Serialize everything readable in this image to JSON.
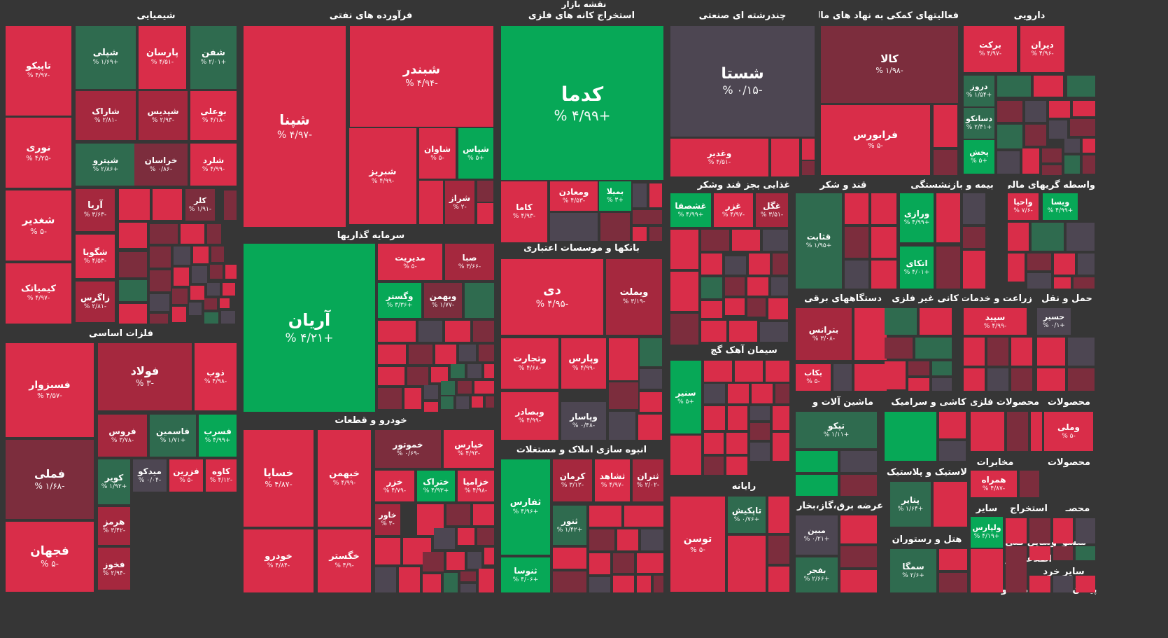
{
  "chart_data": {
    "type": "treemap",
    "title": "نقشه بازار",
    "colors": {
      "background": "#363636",
      "strong_negative": "#d92d49",
      "negative": "#a5283e",
      "mild_negative": "#7c2d3d",
      "neutral": "#4d4652",
      "positive": "#2f6b4f",
      "strong_positive": "#07a857"
    },
    "sectors": [
      {
        "name": "شیمیایی",
        "tiles": [
          {
            "name": "تاپیکو",
            "change": "-۴/۹۷ %",
            "value": -4.97
          },
          {
            "name": "شپلی",
            "change": "+۱/۶۹ %",
            "value": 1.69
          },
          {
            "name": "پارسان",
            "change": "-۴/۵۱ %",
            "value": -4.51
          },
          {
            "name": "شفن",
            "change": "+۲/۰۱ %",
            "value": 2.01
          },
          {
            "name": "نوری",
            "change": "-۴/۲۵ %",
            "value": -4.25
          },
          {
            "name": "شاراک",
            "change": "-۲/۸۱ %",
            "value": -2.81
          },
          {
            "name": "شپدیس",
            "change": "-۲/۹۳ %",
            "value": -2.93
          },
          {
            "name": "بوعلی",
            "change": "-۴/۱۸ %",
            "value": -4.18
          },
          {
            "name": "شپترو",
            "change": "+۲/۸۶ %",
            "value": 2.86
          },
          {
            "name": "خراسان",
            "change": "-۰/۸۶ %",
            "value": -0.86
          },
          {
            "name": "شلرد",
            "change": "-۴/۹۹ %",
            "value": -4.99
          },
          {
            "name": "شغدیر",
            "change": "-۵ %",
            "value": -5
          },
          {
            "name": "آریا",
            "change": "-۳/۶۳ %",
            "value": -3.63
          },
          {
            "name": "کلر",
            "change": "-۱/۹۱ %",
            "value": -1.91
          },
          {
            "name": "شگویا",
            "change": "-۴/۵۳ %",
            "value": -4.53
          },
          {
            "name": "کیمیاتک",
            "change": "-۴/۹۷ %",
            "value": -4.97
          },
          {
            "name": "زاگرس",
            "change": "-۲/۸۱ %",
            "value": -2.81
          }
        ]
      },
      {
        "name": "فرآورده های نفتی",
        "tiles": [
          {
            "name": "شبندر",
            "change": "-۴/۹۴ %",
            "value": -4.94
          },
          {
            "name": "شپنا",
            "change": "-۴/۹۷ %",
            "value": -4.97
          },
          {
            "name": "شاوان",
            "change": "-۵ %",
            "value": -5
          },
          {
            "name": "شپاس",
            "change": "+۵ %",
            "value": 5
          },
          {
            "name": "شبریز",
            "change": "-۴/۹۹ %",
            "value": -4.99
          },
          {
            "name": "شراز",
            "change": "-۲ %",
            "value": -2
          }
        ]
      },
      {
        "name": "استخراج کانه های فلزی",
        "tiles": [
          {
            "name": "کدما",
            "change": "+۴/۹۹ %",
            "value": 4.99
          },
          {
            "name": "ومعادن",
            "change": "-۴/۵۳ %",
            "value": -4.53
          },
          {
            "name": "بمیلا",
            "change": "+۳ %",
            "value": 3
          },
          {
            "name": "کاما",
            "change": "-۴/۹۳ %",
            "value": -4.93
          }
        ]
      },
      {
        "name": "چندرشته ای صنعتی",
        "tiles": [
          {
            "name": "شستا",
            "change": "-۰/۱۵ %",
            "value": -0.15
          },
          {
            "name": "وغدیر",
            "change": "-۴/۵۱ %",
            "value": -4.51
          }
        ]
      },
      {
        "name": "فعالیتهای کمکی به نهاد های مالی",
        "tiles": [
          {
            "name": "کالا",
            "change": "-۱/۹۸ %",
            "value": -1.98
          },
          {
            "name": "فرابورس",
            "change": "-۵ %",
            "value": -5
          }
        ]
      },
      {
        "name": "دارویی",
        "tiles": [
          {
            "name": "برکت",
            "change": "-۴/۹۷ %",
            "value": -4.97
          },
          {
            "name": "دیران",
            "change": "-۴/۹۶ %",
            "value": -4.96
          },
          {
            "name": "دروز",
            "change": "+۱/۵۴ %",
            "value": 1.54
          },
          {
            "name": "دسانکو",
            "change": "+۲/۴۱ %",
            "value": 2.41
          },
          {
            "name": "پخش",
            "change": "+۵ %",
            "value": 5
          }
        ]
      },
      {
        "name": "سرمایه گذاریها",
        "tiles": [
          {
            "name": "آریان",
            "change": "+۴/۲۱ %",
            "value": 4.21
          },
          {
            "name": "مدیریت",
            "change": "-۵ %",
            "value": -5
          },
          {
            "name": "صبا",
            "change": "-۳/۶۶ %",
            "value": -3.66
          },
          {
            "name": "وگستر",
            "change": "+۳/۳۶ %",
            "value": 3.36
          },
          {
            "name": "وبهمن",
            "change": "-۱/۷۷ %",
            "value": -1.77
          }
        ]
      },
      {
        "name": "بانکها و موسسات اعتباری",
        "tiles": [
          {
            "name": "دی",
            "change": "-۴/۹۵ %",
            "value": -4.95
          },
          {
            "name": "وبملت",
            "change": "-۳/۱۹ %",
            "value": -3.19
          },
          {
            "name": "وتجارت",
            "change": "-۴/۶۸ %",
            "value": -4.68
          },
          {
            "name": "وپارس",
            "change": "-۴/۹۹ %",
            "value": -4.99
          },
          {
            "name": "وبصادر",
            "change": "-۴/۹۹ %",
            "value": -4.99
          },
          {
            "name": "وپاسار",
            "change": "-۰/۴۸ %",
            "value": -0.48
          }
        ]
      },
      {
        "name": "غذایی بجز قند وشکر",
        "tiles": [
          {
            "name": "غشصفا",
            "change": "+۴/۹۹ %",
            "value": 4.99
          },
          {
            "name": "غزر",
            "change": "-۴/۹۷ %",
            "value": -4.97
          },
          {
            "name": "غگل",
            "change": "-۳/۵۱ %",
            "value": -3.51
          }
        ]
      },
      {
        "name": "قند و شکر",
        "tiles": [
          {
            "name": "قثابت",
            "change": "+۱/۹۵ %",
            "value": 1.95
          }
        ]
      },
      {
        "name": "بیمه و بازنشستگی",
        "tiles": [
          {
            "name": "ورازی",
            "change": "+۴/۹۹ %",
            "value": 4.99
          },
          {
            "name": "اتکای",
            "change": "+۴/۰۱ %",
            "value": 4.01
          }
        ]
      },
      {
        "name": "واسطه گریهای مالی و",
        "tiles": [
          {
            "name": "واحیا",
            "change": "-۷/۶ %",
            "value": -7.6
          },
          {
            "name": "ویسا",
            "change": "+۴/۹۹ %",
            "value": 4.99
          }
        ]
      },
      {
        "name": "فلزات اساسی",
        "tiles": [
          {
            "name": "فسبزوار",
            "change": "-۴/۵۷ %",
            "value": -4.57
          },
          {
            "name": "فولاد",
            "change": "-۳ %",
            "value": -3
          },
          {
            "name": "ذوب",
            "change": "-۴/۹۸ %",
            "value": -4.98
          },
          {
            "name": "فروس",
            "change": "-۳/۷۸ %",
            "value": -3.78
          },
          {
            "name": "فاسمین",
            "change": "+۱/۷۱ %",
            "value": 1.71
          },
          {
            "name": "فسرب",
            "change": "+۴/۹۹ %",
            "value": 4.99
          },
          {
            "name": "فملی",
            "change": "-۱/۶۸ %",
            "value": -1.68
          },
          {
            "name": "کویر",
            "change": "+۱/۹۲ %",
            "value": 1.92
          },
          {
            "name": "میدکو",
            "change": "-۰/۰۴ %",
            "value": -0.04
          },
          {
            "name": "فزرین",
            "change": "-۵ %",
            "value": -5
          },
          {
            "name": "کاوه",
            "change": "-۴/۱۲ %",
            "value": -4.12
          },
          {
            "name": "هرمز",
            "change": "-۳/۴۲ %",
            "value": -3.42
          },
          {
            "name": "فجهان",
            "change": "-۵ %",
            "value": -5
          },
          {
            "name": "فخوز",
            "change": "-۲/۹۴ %",
            "value": -2.94
          }
        ]
      },
      {
        "name": "خودرو و قطعات",
        "tiles": [
          {
            "name": "خساپا",
            "change": "-۴/۸۷ %",
            "value": -4.87
          },
          {
            "name": "خبهمن",
            "change": "-۴/۹۹ %",
            "value": -4.99
          },
          {
            "name": "خموتور",
            "change": "-۰/۶۹ %",
            "value": -0.69
          },
          {
            "name": "خپارس",
            "change": "-۴/۹۳ %",
            "value": -4.93
          },
          {
            "name": "خزر",
            "change": "-۴/۷۹ %",
            "value": -4.79
          },
          {
            "name": "ختراک",
            "change": "+۴/۹۳ %",
            "value": 4.93
          },
          {
            "name": "خزامیا",
            "change": "-۴/۹۸ %",
            "value": -4.98
          },
          {
            "name": "خاور",
            "change": "-۳ %",
            "value": -3
          },
          {
            "name": "خودرو",
            "change": "-۴/۸۴ %",
            "value": -4.84
          },
          {
            "name": "خگستر",
            "change": "-۴/۹ %",
            "value": -4.9
          }
        ]
      },
      {
        "name": "انبوه سازی املاک و مستغلات",
        "tiles": [
          {
            "name": "کرمان",
            "change": "-۳/۱۲ %",
            "value": -3.12
          },
          {
            "name": "ثشاهد",
            "change": "-۴/۹۷ %",
            "value": -4.97
          },
          {
            "name": "ثتران",
            "change": "-۲/۰۲ %",
            "value": -2.02
          },
          {
            "name": "ثفارس",
            "change": "+۴/۹۶ %",
            "value": 4.96
          },
          {
            "name": "ثنور",
            "change": "+۱/۴۲ %",
            "value": 1.42
          },
          {
            "name": "ثنوسا",
            "change": "+۴/۰۶ %",
            "value": 4.06
          }
        ]
      },
      {
        "name": "سیمان آهک گچ",
        "tiles": [
          {
            "name": "سنیر",
            "change": "+۵ %",
            "value": 5
          }
        ]
      },
      {
        "name": "رایانه",
        "tiles": [
          {
            "name": "توسن",
            "change": "-۵ %",
            "value": -5
          },
          {
            "name": "تاپکیش",
            "change": "+۰/۷۶ %",
            "value": 0.76
          }
        ]
      },
      {
        "name": "دستگاههای برقی",
        "tiles": [
          {
            "name": "بترانس",
            "change": "-۳/۰۸ %",
            "value": -3.08
          },
          {
            "name": "بکاب",
            "change": "-۵ %",
            "value": -5
          }
        ]
      },
      {
        "name": "کانی غیر فلزی",
        "tiles": []
      },
      {
        "name": "زراعت و خدمات",
        "tiles": [
          {
            "name": "سپید",
            "change": "-۴/۹۹ %",
            "value": -4.99
          }
        ]
      },
      {
        "name": "حمل و نقل",
        "tiles": [
          {
            "name": "حسیر",
            "change": "+۰/۱ %",
            "value": 0.1
          }
        ]
      },
      {
        "name": "ماشین آلات و",
        "tiles": [
          {
            "name": "تپکو",
            "change": "+۱/۱۱ %",
            "value": 1.11
          }
        ]
      },
      {
        "name": "کاشی و سرامیک",
        "tiles": []
      },
      {
        "name": "محصولات فلزی",
        "tiles": []
      },
      {
        "name": "محصولات",
        "tiles": [
          {
            "name": "وملی",
            "change": "-۵ %",
            "value": -5
          }
        ]
      },
      {
        "name": "لاستیک و پلاستیک",
        "tiles": [
          {
            "name": "پتایر",
            "change": "+۱/۶۴ %",
            "value": 1.64
          }
        ]
      },
      {
        "name": "مخابرات",
        "tiles": [
          {
            "name": "همراه",
            "change": "-۴/۸۷ %",
            "value": -4.87
          }
        ]
      },
      {
        "name": "محصولات",
        "tiles": []
      },
      {
        "name": "عرضه برق،گاز،بخار و",
        "tiles": [
          {
            "name": "مبین",
            "change": "+۰/۲۱ %",
            "value": 0.21
          },
          {
            "name": "بفجر",
            "change": "+۲/۶۶ %",
            "value": 2.66
          }
        ]
      },
      {
        "name": "سایر",
        "tiles": [
          {
            "name": "ولپارس",
            "change": "+۴/۱۹ %",
            "value": 4.19
          }
        ]
      },
      {
        "name": "استخراج",
        "tiles": []
      },
      {
        "name": "محصـ",
        "tiles": []
      },
      {
        "name": "هتل و رستوران",
        "tiles": [
          {
            "name": "سمگا",
            "change": "+۲/۶ %",
            "value": 2.6
          }
        ]
      },
      {
        "name": "منسو",
        "tiles": []
      },
      {
        "name": "وسایل فنی و",
        "tiles": []
      },
      {
        "name": "اطلاعات و",
        "tiles": []
      },
      {
        "name": "سایر خرد",
        "tiles": []
      },
      {
        "name": "استه",
        "tiles": []
      },
      {
        "name": "پیمان",
        "tiles": []
      },
      {
        "name": "محصو",
        "tiles": []
      }
    ]
  }
}
